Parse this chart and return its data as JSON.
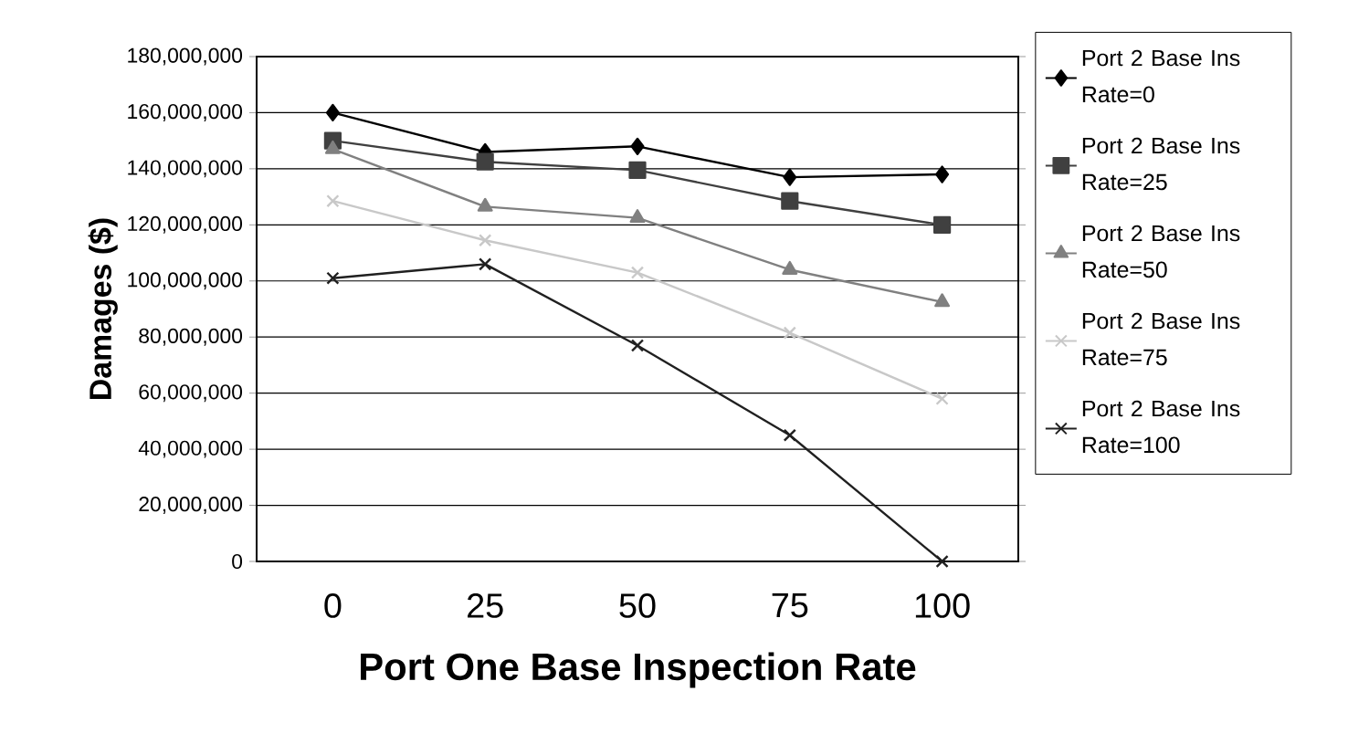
{
  "chart_data": {
    "type": "line",
    "xlabel": "Port One Base Inspection Rate",
    "ylabel": "Damages ($)",
    "categories": [
      "0",
      "25",
      "50",
      "75",
      "100"
    ],
    "series": [
      {
        "name": "Port 2 Base Ins Rate=0",
        "color": "#000000",
        "marker": "diamond",
        "values": [
          160000000,
          146000000,
          148000000,
          137000000,
          138000000
        ]
      },
      {
        "name": "Port 2 Base Ins Rate=25",
        "color": "#404040",
        "marker": "square",
        "values": [
          150000000,
          142500000,
          139500000,
          128500000,
          120000000
        ]
      },
      {
        "name": "Port 2 Base Ins Rate=50",
        "color": "#808080",
        "marker": "triangle",
        "values": [
          147000000,
          126500000,
          122500000,
          104000000,
          92500000
        ]
      },
      {
        "name": "Port 2 Base Ins Rate=75",
        "color": "#c8c8c8",
        "marker": "cross",
        "values": [
          128500000,
          114500000,
          103000000,
          81500000,
          58000000
        ]
      },
      {
        "name": "Port 2 Base Ins Rate=100",
        "color": "#202020",
        "marker": "cross",
        "values": [
          101000000,
          106000000,
          77000000,
          45000000,
          0
        ]
      }
    ],
    "ylim": [
      0,
      180000000
    ],
    "yticks": [
      {
        "value": 0,
        "label": "0"
      },
      {
        "value": 20000000,
        "label": "20,000,000"
      },
      {
        "value": 40000000,
        "label": "40,000,000"
      },
      {
        "value": 60000000,
        "label": "60,000,000"
      },
      {
        "value": 80000000,
        "label": "80,000,000"
      },
      {
        "value": 100000000,
        "label": "100,000,000"
      },
      {
        "value": 120000000,
        "label": "120,000,000"
      },
      {
        "value": 140000000,
        "label": "140,000,000"
      },
      {
        "value": 160000000,
        "label": "160,000,000"
      },
      {
        "value": 180000000,
        "label": "180,000,000"
      }
    ],
    "grid": "y",
    "legend": "right",
    "line_style": "solid"
  }
}
